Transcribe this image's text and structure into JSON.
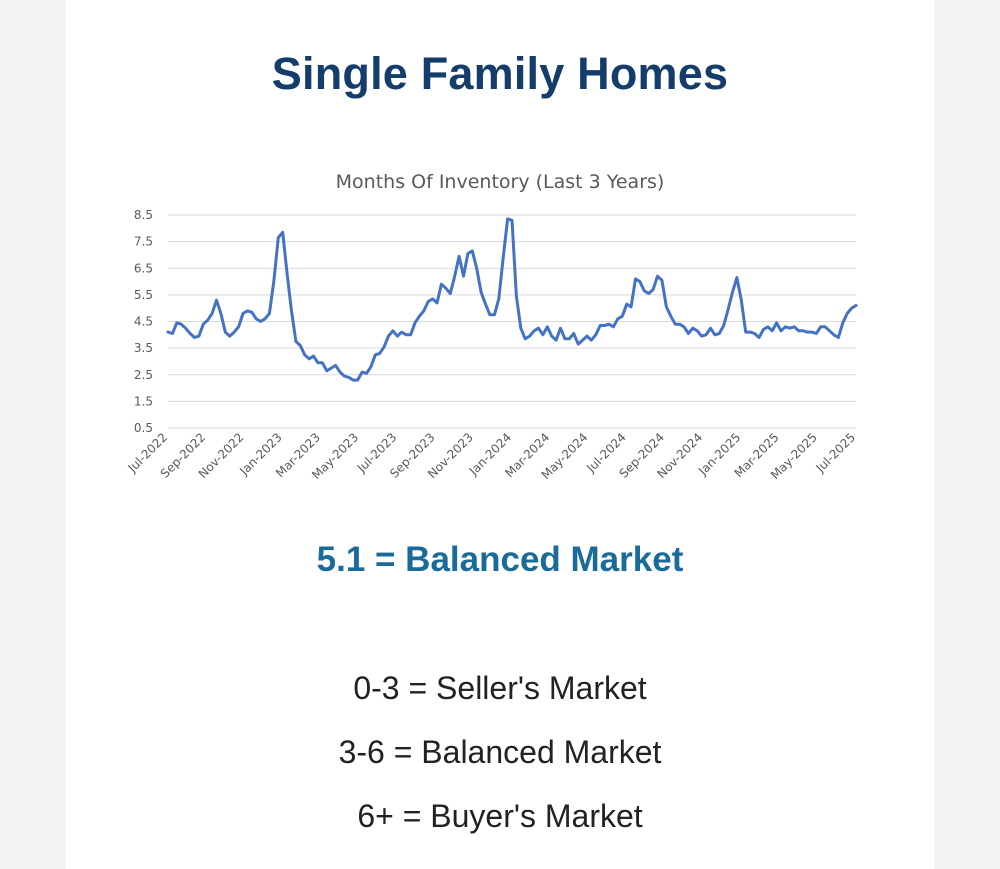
{
  "page": {
    "title": "Single Family Homes"
  },
  "summary": "5.1 = Balanced Market",
  "legend_scale": [
    "0-3 = Seller's Market",
    "3-6 = Balanced Market",
    "6+ = Buyer's Market"
  ],
  "colors": {
    "title": "#143d6b",
    "summary": "#1a6a9a",
    "line": "#4472c4",
    "grid": "#d9d9d9"
  },
  "chart_data": {
    "type": "line",
    "title": "Months Of Inventory (Last 3 Years)",
    "xlabel": "",
    "ylabel": "",
    "ylim": [
      0.5,
      8.5
    ],
    "yticks": [
      8.5,
      7.5,
      6.5,
      5.5,
      4.5,
      3.5,
      2.5,
      1.5,
      0.5
    ],
    "xtick_labels": [
      "Jul-2022",
      "Sep-2022",
      "Nov-2022",
      "Jan-2023",
      "Mar-2023",
      "May-2023",
      "Jul-2023",
      "Sep-2023",
      "Nov-2023",
      "Jan-2024",
      "Mar-2024",
      "May-2024",
      "Jul-2024",
      "Sep-2024",
      "Nov-2024",
      "Jan-2025",
      "Mar-2025",
      "May-2025",
      "Jul-2025"
    ],
    "x_start": "Jul-2022",
    "x_end": "Jul-2025",
    "grid": true,
    "series": [
      {
        "values": [
          4.1,
          4.05,
          4.45,
          4.4,
          4.25,
          4.05,
          3.9,
          3.95,
          4.4,
          4.55,
          4.8,
          5.3,
          4.8,
          4.1,
          3.95,
          4.1,
          4.3,
          4.8,
          4.9,
          4.85,
          4.6,
          4.5,
          4.6,
          4.8,
          6.0,
          7.65,
          7.85,
          6.3,
          4.9,
          3.75,
          3.6,
          3.25,
          3.1,
          3.2,
          2.95,
          2.95,
          2.65,
          2.75,
          2.85,
          2.6,
          2.45,
          2.4,
          2.3,
          2.3,
          2.6,
          2.55,
          2.8,
          3.25,
          3.3,
          3.55,
          3.95,
          4.15,
          3.95,
          4.1,
          4.0,
          4.0,
          4.45,
          4.7,
          4.9,
          5.25,
          5.35,
          5.2,
          5.9,
          5.75,
          5.55,
          6.2,
          6.95,
          6.2,
          7.05,
          7.15,
          6.5,
          5.6,
          5.15,
          4.75,
          4.75,
          5.35,
          6.9,
          8.35,
          8.3,
          5.45,
          4.25,
          3.85,
          3.95,
          4.15,
          4.25,
          4.0,
          4.3,
          3.95,
          3.8,
          4.25,
          3.85,
          3.85,
          4.05,
          3.65,
          3.8,
          3.95,
          3.8,
          4.0,
          4.35,
          4.35,
          4.4,
          4.3,
          4.6,
          4.7,
          5.15,
          5.05,
          6.1,
          6.0,
          5.65,
          5.55,
          5.7,
          6.2,
          6.05,
          5.05,
          4.7,
          4.4,
          4.4,
          4.3,
          4.05,
          4.25,
          4.15,
          3.95,
          4.0,
          4.25,
          4.0,
          4.05,
          4.35,
          4.95,
          5.6,
          6.15,
          5.3,
          4.1,
          4.1,
          4.05,
          3.9,
          4.2,
          4.3,
          4.15,
          4.45,
          4.15,
          4.3,
          4.25,
          4.3,
          4.15,
          4.15,
          4.1,
          4.1,
          4.05,
          4.3,
          4.3,
          4.15,
          4.0,
          3.9,
          4.45,
          4.8,
          5.0,
          5.1
        ]
      }
    ]
  }
}
